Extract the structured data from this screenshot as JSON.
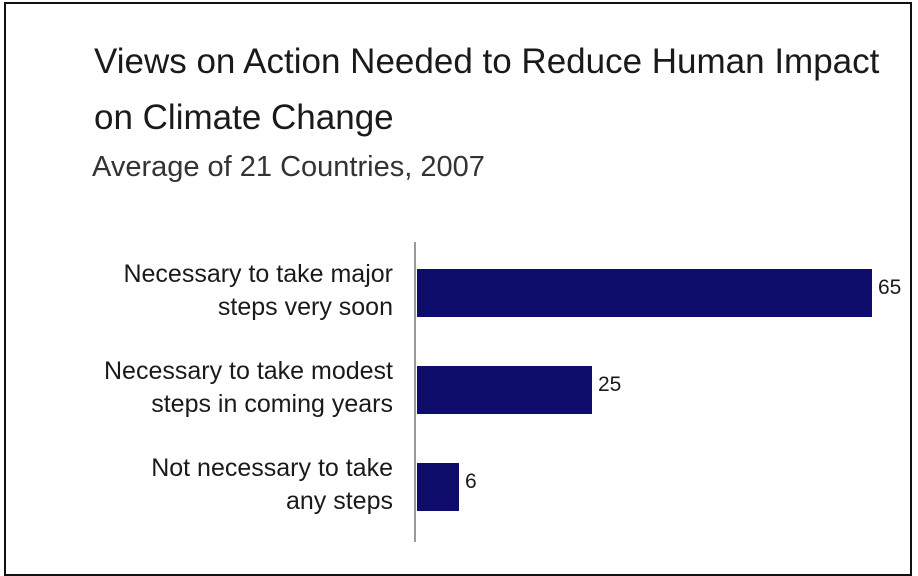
{
  "chart_data": {
    "type": "bar",
    "orientation": "horizontal",
    "title": "Views on Action Needed to Reduce Human Impact on Climate Change",
    "subtitle": "Average of 21 Countries, 2007",
    "categories": [
      "Necessary to take major steps very soon",
      "Necessary to take modest steps in coming years",
      "Not necessary to take any steps"
    ],
    "category_lines": [
      [
        "Necessary to take major",
        "steps very soon"
      ],
      [
        "Necessary to take modest",
        "steps in coming years"
      ],
      [
        "Not necessary to take",
        "any steps"
      ]
    ],
    "values": [
      65,
      25,
      6
    ],
    "value_labels": [
      "65",
      "25",
      "6"
    ],
    "xlim": [
      0,
      65
    ],
    "grid": false,
    "colors": {
      "bar": "#0f0d6b",
      "axis": "#999999"
    }
  }
}
